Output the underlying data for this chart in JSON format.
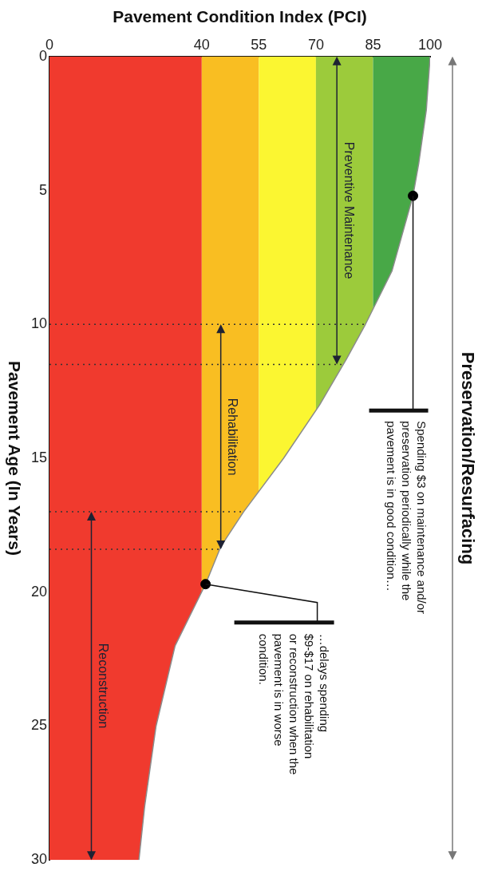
{
  "chart_data": {
    "type": "line",
    "xlabel": "Pavement Condition Index (PCI)",
    "ylabel": "Pavement Age (In Years)",
    "xlim": [
      0,
      100
    ],
    "xticks": [
      0,
      40,
      55,
      70,
      85,
      100
    ],
    "ylim": [
      30,
      0
    ],
    "yticks": [
      0,
      5,
      10,
      15,
      20,
      25,
      30
    ],
    "grid": false,
    "legend": false,
    "series": [
      {
        "color": "#8c8c8c",
        "x": [
          100,
          99,
          97,
          95.5,
          90,
          83,
          78,
          71,
          61.5,
          51,
          45,
          41,
          33,
          28,
          25,
          23.5
        ],
        "values": [
          0,
          2,
          4,
          5.2,
          8,
          10,
          11.3,
          13,
          15,
          17,
          18.3,
          19.7,
          22,
          25,
          28,
          30
        ]
      },
      {
        "type": "scatter",
        "color": "#000000",
        "marker": "circle",
        "x": [
          95.5,
          41
        ],
        "values": [
          5.2,
          19.7
        ]
      }
    ],
    "bands": [
      {
        "axis": "x",
        "from": 0,
        "to": 40,
        "color": "#f03a2e"
      },
      {
        "axis": "x",
        "from": 40,
        "to": 55,
        "color": "#f9be22"
      },
      {
        "axis": "x",
        "from": 55,
        "to": 70,
        "color": "#fbf631"
      },
      {
        "axis": "x",
        "from": 70,
        "to": 85,
        "color": "#9ccb3b"
      },
      {
        "axis": "x",
        "from": 85,
        "to": 100,
        "color": "#48a847"
      }
    ],
    "ref_lines": [
      {
        "axis": "y",
        "value": 10,
        "line_style": "dotted",
        "color": "#333333"
      },
      {
        "axis": "y",
        "value": 11.5,
        "line_style": "dotted",
        "color": "#333333"
      },
      {
        "axis": "y",
        "value": 17,
        "line_style": "dotted",
        "color": "#333333"
      },
      {
        "axis": "y",
        "value": 18.4,
        "line_style": "dotted",
        "color": "#333333"
      }
    ],
    "annotations": [
      "Preventive Maintenance",
      "Rehabilitation",
      "Reconstruction",
      "Preservation/Resurfacing",
      {
        "text": "Spending $3 on maintenance and/or\npreservation periodically while the\npavement is in good condition…",
        "x": 95.5,
        "y": 5.2
      },
      {
        "text": "…delays spending\n$9-$17 on rehabilitation\nor reconstruction when the\npavement is in worse\ncondition.",
        "x": 41,
        "y": 19.7
      }
    ]
  }
}
